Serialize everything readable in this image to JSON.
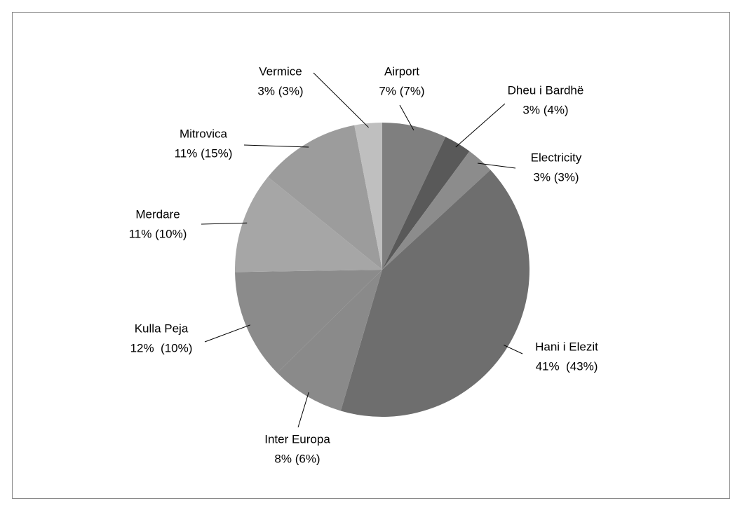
{
  "chart_data": {
    "type": "pie",
    "categories": [
      "Airport",
      "Dheu i Bardhë",
      "Electricity",
      "Hani i Elezit",
      "Inter Europa",
      "Kulla Peja",
      "Merdare",
      "Mitrovica",
      "Vermice"
    ],
    "values": [
      7,
      3,
      3,
      41,
      8,
      12,
      11,
      11,
      3
    ],
    "value_labels": [
      "7% (7%)",
      "3% (4%)",
      "3% (3%)",
      "41%  (43%)",
      "8% (6%)",
      "12%  (10%)",
      "11% (10%)",
      "11% (15%)",
      "3% (3%)"
    ],
    "colors": [
      "#7f7f7f",
      "#595959",
      "#8c8c8c",
      "#6e6e6e",
      "#8a8a8a",
      "#8b8b8b",
      "#a6a6a6",
      "#9c9c9c",
      "#bfbfbf"
    ]
  }
}
